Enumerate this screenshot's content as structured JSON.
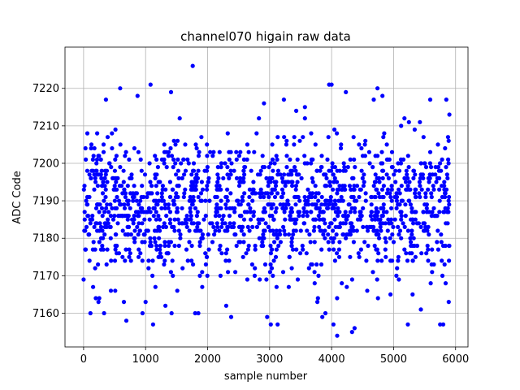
{
  "chart_data": {
    "type": "scatter",
    "title": "channel070 higain raw data",
    "xlabel": "sample number",
    "ylabel": "ADC Code",
    "xlim": [
      -300,
      6200
    ],
    "ylim": [
      7151,
      7231
    ],
    "x_ticks": [
      0,
      1000,
      2000,
      3000,
      4000,
      5000,
      6000
    ],
    "y_ticks": [
      7160,
      7170,
      7180,
      7190,
      7200,
      7210,
      7220
    ],
    "grid": true,
    "marker_color": "#0000ff",
    "series": [
      {
        "x_range": [
          0,
          5900
        ],
        "mean": 7188,
        "std_approx": 9,
        "points": [
          [
            0,
            7169
          ],
          [
            30,
            7204
          ],
          [
            60,
            7208
          ],
          [
            110,
            7160
          ],
          [
            240,
            7163
          ],
          [
            330,
            7160
          ],
          [
            360,
            7217
          ],
          [
            440,
            7166
          ],
          [
            510,
            7166
          ],
          [
            590,
            7220
          ],
          [
            650,
            7163
          ],
          [
            690,
            7158
          ],
          [
            870,
            7218
          ],
          [
            950,
            7160
          ],
          [
            1000,
            7163
          ],
          [
            1080,
            7221
          ],
          [
            1120,
            7157
          ],
          [
            1320,
            7162
          ],
          [
            1410,
            7219
          ],
          [
            1420,
            7160
          ],
          [
            1760,
            7226
          ],
          [
            1800,
            7160
          ],
          [
            1850,
            7160
          ],
          [
            2300,
            7162
          ],
          [
            2380,
            7159
          ],
          [
            2910,
            7216
          ],
          [
            2960,
            7159
          ],
          [
            3020,
            7157
          ],
          [
            3130,
            7157
          ],
          [
            3230,
            7217
          ],
          [
            3430,
            7214
          ],
          [
            3570,
            7215
          ],
          [
            3770,
            7163
          ],
          [
            3850,
            7159
          ],
          [
            3900,
            7160
          ],
          [
            3960,
            7221
          ],
          [
            4000,
            7221
          ],
          [
            4030,
            7157
          ],
          [
            4090,
            7154
          ],
          [
            4230,
            7219
          ],
          [
            4330,
            7155
          ],
          [
            4370,
            7156
          ],
          [
            4680,
            7217
          ],
          [
            4740,
            7220
          ],
          [
            4820,
            7218
          ],
          [
            5230,
            7157
          ],
          [
            5440,
            7161
          ],
          [
            5590,
            7217
          ],
          [
            5750,
            7157
          ],
          [
            5800,
            7157
          ],
          [
            5850,
            7217
          ],
          [
            5890,
            7163
          ],
          [
            5900,
            7213
          ]
        ]
      }
    ]
  }
}
